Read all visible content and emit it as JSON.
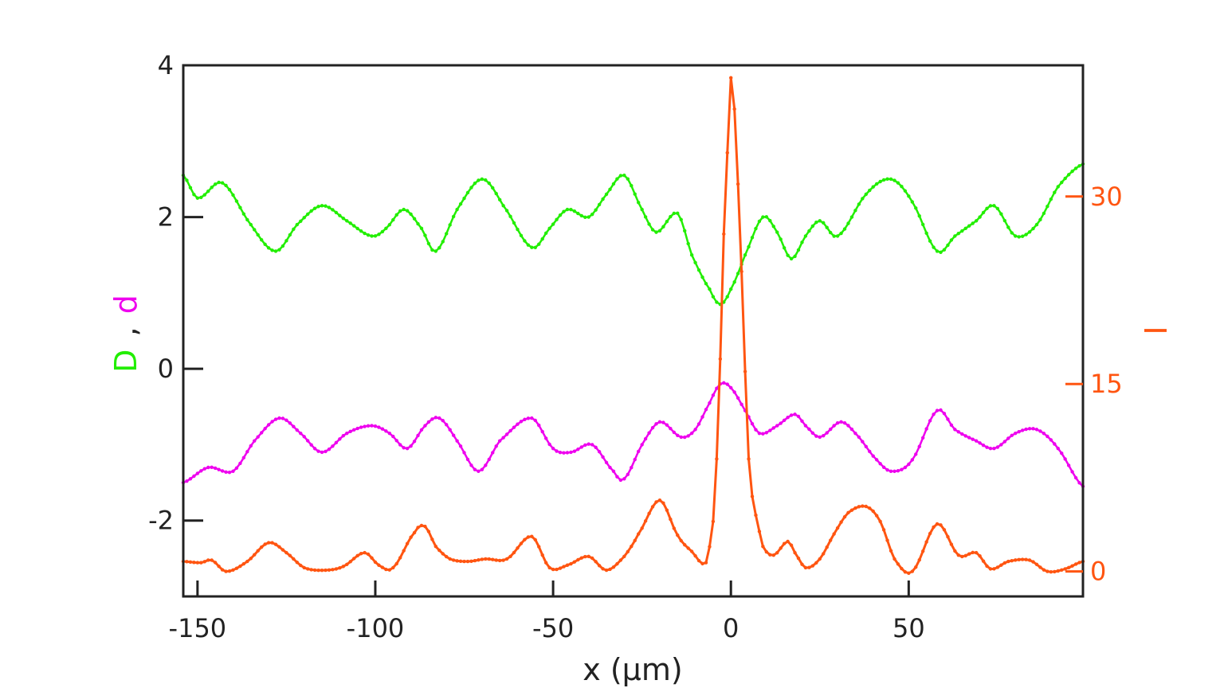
{
  "chart_data": {
    "type": "line",
    "title": "",
    "xlabel": "x (μm)",
    "ylabel_left": {
      "D": "D",
      "sep": ",",
      "d": "d"
    },
    "ylabel_right": "I",
    "xlim": [
      -154,
      99
    ],
    "ylim_left": [
      -3,
      4
    ],
    "ylim_right": [
      -2,
      40.5
    ],
    "x_ticks": [
      -150,
      -100,
      -50,
      0,
      50
    ],
    "left_ticks": [
      -2,
      0,
      2,
      4
    ],
    "right_ticks": [
      0,
      15,
      30
    ],
    "x_tick_labels": [
      "-150",
      "-100",
      "-50",
      "0",
      "50"
    ],
    "left_tick_labels": [
      "-2",
      "0",
      "2",
      "4"
    ],
    "right_tick_labels": [
      "0",
      "15",
      "30"
    ],
    "colors": {
      "D": "#22ee00",
      "d": "#ee00ee",
      "I": "#ff5511",
      "axis": "#222222"
    },
    "series": [
      {
        "key": "D",
        "name": "D",
        "axis": "left",
        "x": [
          -154,
          -150,
          -143,
          -135,
          -128,
          -122,
          -115,
          -108,
          -101,
          -97,
          -92,
          -87,
          -83,
          -77,
          -70,
          -64,
          -56,
          -51,
          -46,
          -40,
          -35,
          -30,
          -25,
          -21,
          -15,
          -11,
          -6,
          -3,
          0,
          4,
          9,
          13,
          17,
          21,
          25,
          30,
          38,
          45,
          51,
          58,
          63,
          69,
          74,
          80,
          86,
          92,
          99
        ],
        "y": [
          2.55,
          2.25,
          2.45,
          1.9,
          1.55,
          1.9,
          2.15,
          1.95,
          1.75,
          1.85,
          2.1,
          1.85,
          1.55,
          2.1,
          2.5,
          2.15,
          1.6,
          1.85,
          2.1,
          2.0,
          2.3,
          2.55,
          2.1,
          1.8,
          2.05,
          1.5,
          1.05,
          0.85,
          1.05,
          1.5,
          2.0,
          1.8,
          1.45,
          1.75,
          1.95,
          1.75,
          2.3,
          2.5,
          2.2,
          1.55,
          1.75,
          1.95,
          2.15,
          1.75,
          1.9,
          2.4,
          2.7
        ]
      },
      {
        "key": "d",
        "name": "d",
        "axis": "left",
        "x": [
          -154,
          -147,
          -140,
          -134,
          -127,
          -121,
          -115,
          -108,
          -101,
          -96,
          -91,
          -86,
          -82,
          -77,
          -71,
          -65,
          -56,
          -50,
          -45,
          -39,
          -33,
          -30,
          -25,
          -20,
          -14,
          -10,
          -6,
          -3,
          0,
          4,
          8,
          13,
          18,
          21,
          25,
          31,
          36,
          40,
          45,
          51,
          58,
          63,
          69,
          74,
          80,
          86,
          92,
          99
        ],
        "y": [
          -1.5,
          -1.3,
          -1.35,
          -0.95,
          -0.65,
          -0.85,
          -1.1,
          -0.85,
          -0.75,
          -0.85,
          -1.05,
          -0.75,
          -0.65,
          -0.95,
          -1.35,
          -0.95,
          -0.65,
          -1.05,
          -1.1,
          -1.0,
          -1.35,
          -1.45,
          -1.0,
          -0.7,
          -0.9,
          -0.8,
          -0.45,
          -0.2,
          -0.25,
          -0.55,
          -0.85,
          -0.75,
          -0.6,
          -0.75,
          -0.9,
          -0.7,
          -0.9,
          -1.15,
          -1.35,
          -1.2,
          -0.55,
          -0.8,
          -0.95,
          -1.05,
          -0.85,
          -0.8,
          -1.05,
          -1.55
        ]
      },
      {
        "key": "I",
        "name": "I",
        "axis": "right",
        "x": [
          -154,
          -149,
          -146,
          -142,
          -136,
          -130,
          -125,
          -120,
          -114,
          -109,
          -103,
          -99,
          -95,
          -89,
          -86,
          -83,
          -79,
          -74,
          -69,
          -63,
          -56,
          -51,
          -46,
          -40,
          -35,
          -30,
          -26,
          -20,
          -15,
          -11,
          -7,
          -5,
          -4,
          -3,
          -2,
          -1,
          0,
          1,
          2,
          3,
          4,
          5,
          6,
          7,
          9,
          12,
          16,
          18,
          21,
          25,
          29,
          33,
          38,
          42,
          46,
          51,
          58,
          64,
          69,
          73,
          78,
          84,
          89,
          94,
          99
        ],
        "y": [
          0.8,
          0.7,
          0.9,
          0.0,
          0.8,
          2.3,
          1.5,
          0.3,
          0.1,
          0.4,
          1.5,
          0.5,
          0.3,
          3.1,
          3.6,
          2.0,
          1.0,
          0.8,
          1.0,
          1.0,
          2.8,
          0.3,
          0.5,
          1.2,
          0.1,
          1.2,
          3.0,
          5.7,
          2.9,
          1.6,
          0.7,
          4.0,
          9.0,
          17.0,
          27.0,
          33.5,
          39.5,
          37.0,
          31.0,
          24.0,
          16.0,
          9.0,
          6.0,
          4.5,
          2.0,
          1.3,
          2.4,
          1.5,
          0.3,
          1.0,
          3.0,
          4.7,
          5.2,
          4.0,
          1.0,
          0.0,
          3.8,
          1.3,
          1.5,
          0.2,
          0.8,
          0.9,
          0.0,
          0.2,
          0.8
        ]
      }
    ]
  }
}
